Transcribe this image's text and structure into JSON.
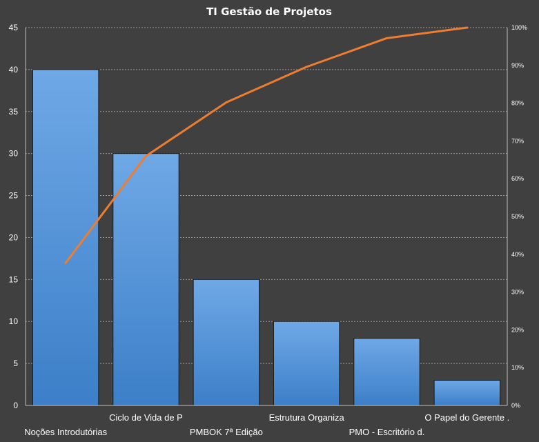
{
  "chart_data": {
    "type": "pareto",
    "title": "TI Gestão  de Projetos",
    "categories": [
      "Noções Introdutórias",
      "Ciclo de Vida de P",
      "PMBOK 7ª Edição",
      "Estrutura  Organiza",
      "PMO - Escritório d.",
      "O Papel do Gerente  ."
    ],
    "series": [
      {
        "type": "bar",
        "values": [
          40,
          30,
          15,
          10,
          8,
          3
        ]
      },
      {
        "type": "line",
        "axis": "right",
        "values": [
          37.7,
          66.0,
          80.2,
          89.6,
          97.2,
          100.0
        ]
      }
    ],
    "y_left": {
      "min": 0,
      "max": 45,
      "step": 5
    },
    "y_right": {
      "min": 0,
      "max": 100,
      "step": 10,
      "unit": "%"
    },
    "grid": true,
    "legend": "none",
    "colors": {
      "background": "#404040",
      "bar_top": "#6fa8e6",
      "bar_bottom": "#3c7fc8",
      "bar_stroke": "#1a1a1a",
      "line": "#ed7d31",
      "grid": "#9a9a9a",
      "text": "#ffffff"
    }
  }
}
